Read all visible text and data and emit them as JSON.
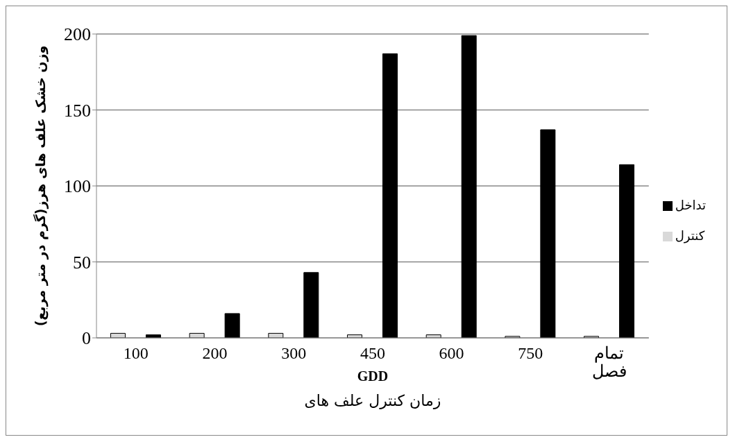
{
  "chart_data": {
    "type": "bar",
    "xlabel": "GDD\nزمان کنترل علف های",
    "ylabel": "وزن خشک علف های هرز(گرم در متر مربع)",
    "categories": [
      "100",
      "200",
      "300",
      "450",
      "600",
      "750",
      "تمام فصل"
    ],
    "series": [
      {
        "name": "کنترل",
        "color": "#d9d9d9",
        "values": [
          3,
          3,
          3,
          2,
          2,
          1,
          1
        ]
      },
      {
        "name": "تداخل",
        "color": "#000000",
        "values": [
          2,
          16,
          43,
          187,
          199,
          137,
          114
        ]
      }
    ],
    "ylim": [
      0,
      200
    ],
    "yticks": [
      0,
      50,
      100,
      150,
      200
    ],
    "grid": "y",
    "legend": "right"
  }
}
